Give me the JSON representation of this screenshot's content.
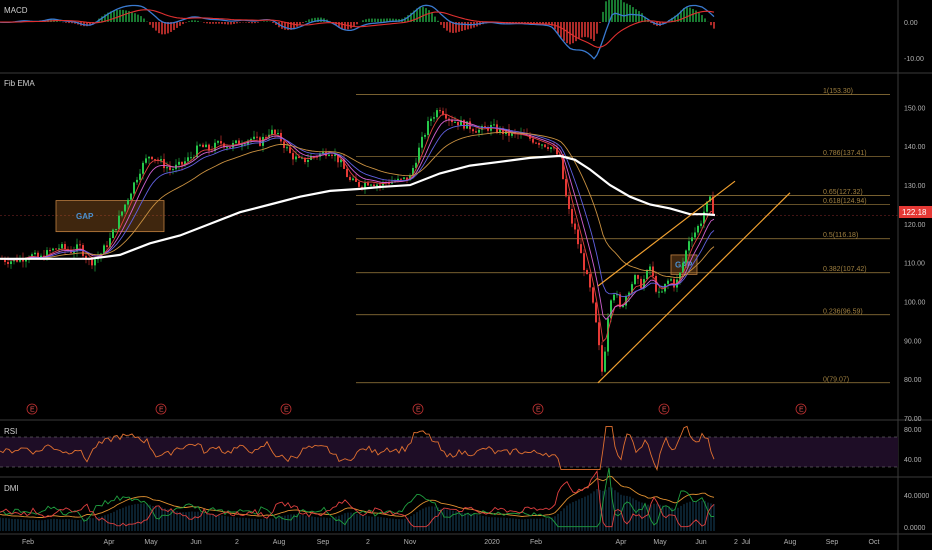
{
  "panes": {
    "macd": {
      "title": "MACD",
      "ticks": [
        "0.00",
        "-10.00"
      ]
    },
    "price": {
      "title": "Fib EMA",
      "ticks": [
        "150.00",
        "140.00",
        "130.00",
        "120.00",
        "110.00",
        "100.00",
        "90.00",
        "80.00",
        "70.00"
      ],
      "last_price": "122.18"
    },
    "rsi": {
      "title": "RSI",
      "ticks": [
        "80.00",
        "40.00"
      ]
    },
    "dmi": {
      "title": "DMI",
      "ticks": [
        "40.0000",
        "0.0000"
      ]
    }
  },
  "x_axis": {
    "labels": [
      "Feb",
      "Apr",
      "May",
      "Jun",
      "2",
      "Aug",
      "Sep",
      "2",
      "Nov",
      "2020",
      "Feb",
      "Apr",
      "May",
      "Jun",
      "2",
      "Jul",
      "Aug",
      "Sep",
      "Oct"
    ]
  },
  "fib_levels": [
    {
      "label": "1(153.30)",
      "value": 153.3
    },
    {
      "label": "0.786(137.41)",
      "value": 137.41
    },
    {
      "label": "0.65(127.32)",
      "value": 127.32
    },
    {
      "label": "0.618(124.94)",
      "value": 124.94
    },
    {
      "label": "0.5(116.18)",
      "value": 116.18
    },
    {
      "label": "0.382(107.42)",
      "value": 107.42
    },
    {
      "label": "0.236(96.59)",
      "value": 96.59
    },
    {
      "label": "0(79.07)",
      "value": 79.07
    }
  ],
  "annotations": {
    "gap_label": "GAP",
    "earnings_marker": "E"
  },
  "colors": {
    "up": "#26c84a",
    "down": "#e53935",
    "ema_slow": "#ffffff",
    "ema_mid": "#c89040",
    "trend": "#f0a030",
    "fib": "#a08040",
    "rsi": "#e07030",
    "rsi_band": "#2a1030",
    "macd": "#3a7ad0",
    "signal": "#e03030",
    "hist_up": "#20a040",
    "dmi_plus": "#20a040",
    "dmi_minus": "#e04040",
    "adx": "#e09030",
    "price_tag": "#e53935"
  },
  "chart_data": {
    "type": "candlestick",
    "title": "Fib EMA",
    "ylim": [
      70,
      155
    ],
    "last_price": 122.18,
    "x_labels": [
      "Feb",
      "Apr",
      "May",
      "Jun",
      "2",
      "Aug",
      "Sep",
      "2",
      "Nov",
      "2020",
      "Feb",
      "Apr",
      "May",
      "Jun",
      "2",
      "Jul",
      "Aug",
      "Sep",
      "Oct"
    ],
    "price_path": [
      [
        0,
        111
      ],
      [
        10,
        110.5
      ],
      [
        20,
        111
      ],
      [
        30,
        112
      ],
      [
        40,
        111
      ],
      [
        50,
        113
      ],
      [
        60,
        114
      ],
      [
        70,
        113
      ],
      [
        80,
        114
      ],
      [
        90,
        110
      ],
      [
        100,
        112
      ],
      [
        110,
        116
      ],
      [
        120,
        122
      ],
      [
        130,
        128
      ],
      [
        140,
        134
      ],
      [
        150,
        138
      ],
      [
        160,
        136
      ],
      [
        170,
        134
      ],
      [
        180,
        135
      ],
      [
        190,
        137
      ],
      [
        200,
        140
      ],
      [
        210,
        139
      ],
      [
        220,
        141
      ],
      [
        230,
        140
      ],
      [
        240,
        141
      ],
      [
        250,
        142
      ],
      [
        260,
        141
      ],
      [
        270,
        144
      ],
      [
        280,
        142
      ],
      [
        290,
        138
      ],
      [
        300,
        136
      ],
      [
        310,
        137
      ],
      [
        320,
        138
      ],
      [
        330,
        139
      ],
      [
        340,
        136
      ],
      [
        350,
        131
      ],
      [
        360,
        130
      ],
      [
        370,
        131
      ],
      [
        380,
        130
      ],
      [
        390,
        131
      ],
      [
        400,
        131
      ],
      [
        410,
        132
      ],
      [
        420,
        140
      ],
      [
        430,
        147
      ],
      [
        440,
        150
      ],
      [
        450,
        147
      ],
      [
        460,
        146
      ],
      [
        470,
        145
      ],
      [
        480,
        144
      ],
      [
        490,
        145
      ],
      [
        500,
        144
      ],
      [
        510,
        143
      ],
      [
        520,
        143
      ],
      [
        530,
        142
      ],
      [
        540,
        141
      ],
      [
        550,
        140
      ],
      [
        560,
        137
      ],
      [
        565,
        128
      ],
      [
        570,
        122
      ],
      [
        575,
        118
      ],
      [
        580,
        113
      ],
      [
        585,
        108
      ],
      [
        590,
        103
      ],
      [
        595,
        96
      ],
      [
        600,
        86
      ],
      [
        603,
        80
      ],
      [
        606,
        92
      ],
      [
        610,
        101
      ],
      [
        615,
        103
      ],
      [
        620,
        98
      ],
      [
        625,
        101
      ],
      [
        630,
        104
      ],
      [
        635,
        106
      ],
      [
        640,
        104
      ],
      [
        645,
        106
      ],
      [
        650,
        109
      ],
      [
        655,
        104
      ],
      [
        660,
        101
      ],
      [
        665,
        104
      ],
      [
        670,
        106
      ],
      [
        675,
        104
      ],
      [
        680,
        107
      ],
      [
        685,
        112
      ],
      [
        690,
        117
      ],
      [
        695,
        118
      ],
      [
        700,
        120
      ],
      [
        705,
        124
      ],
      [
        710,
        126
      ],
      [
        715,
        122
      ]
    ],
    "ema_slow_path": [
      [
        0,
        111
      ],
      [
        50,
        111
      ],
      [
        90,
        111
      ],
      [
        120,
        112
      ],
      [
        150,
        115
      ],
      [
        180,
        117
      ],
      [
        210,
        120
      ],
      [
        240,
        123
      ],
      [
        270,
        125
      ],
      [
        300,
        127
      ],
      [
        330,
        128.5
      ],
      [
        360,
        129
      ],
      [
        380,
        129.5
      ],
      [
        410,
        130
      ],
      [
        440,
        133
      ],
      [
        470,
        135
      ],
      [
        500,
        136
      ],
      [
        530,
        137
      ],
      [
        560,
        137.5
      ],
      [
        575,
        136.5
      ],
      [
        590,
        134
      ],
      [
        610,
        130
      ],
      [
        630,
        127
      ],
      [
        650,
        125
      ],
      [
        670,
        124
      ],
      [
        690,
        122.5
      ],
      [
        705,
        122.5
      ],
      [
        715,
        122.3
      ]
    ],
    "fib_levels": [
      153.3,
      137.41,
      127.32,
      124.94,
      116.18,
      107.42,
      96.59,
      79.07
    ],
    "trendlines": [
      {
        "from": [
          598,
          79.07
        ],
        "to": [
          790,
          128
        ]
      },
      {
        "from": [
          598,
          104
        ],
        "to": [
          735,
          131
        ]
      }
    ],
    "rsi": {
      "ylim": [
        20,
        90
      ],
      "bands": [
        70,
        30
      ]
    },
    "dmi": {
      "ylim": [
        0,
        60
      ]
    },
    "macd": {
      "ylim": [
        -12,
        6
      ]
    }
  }
}
